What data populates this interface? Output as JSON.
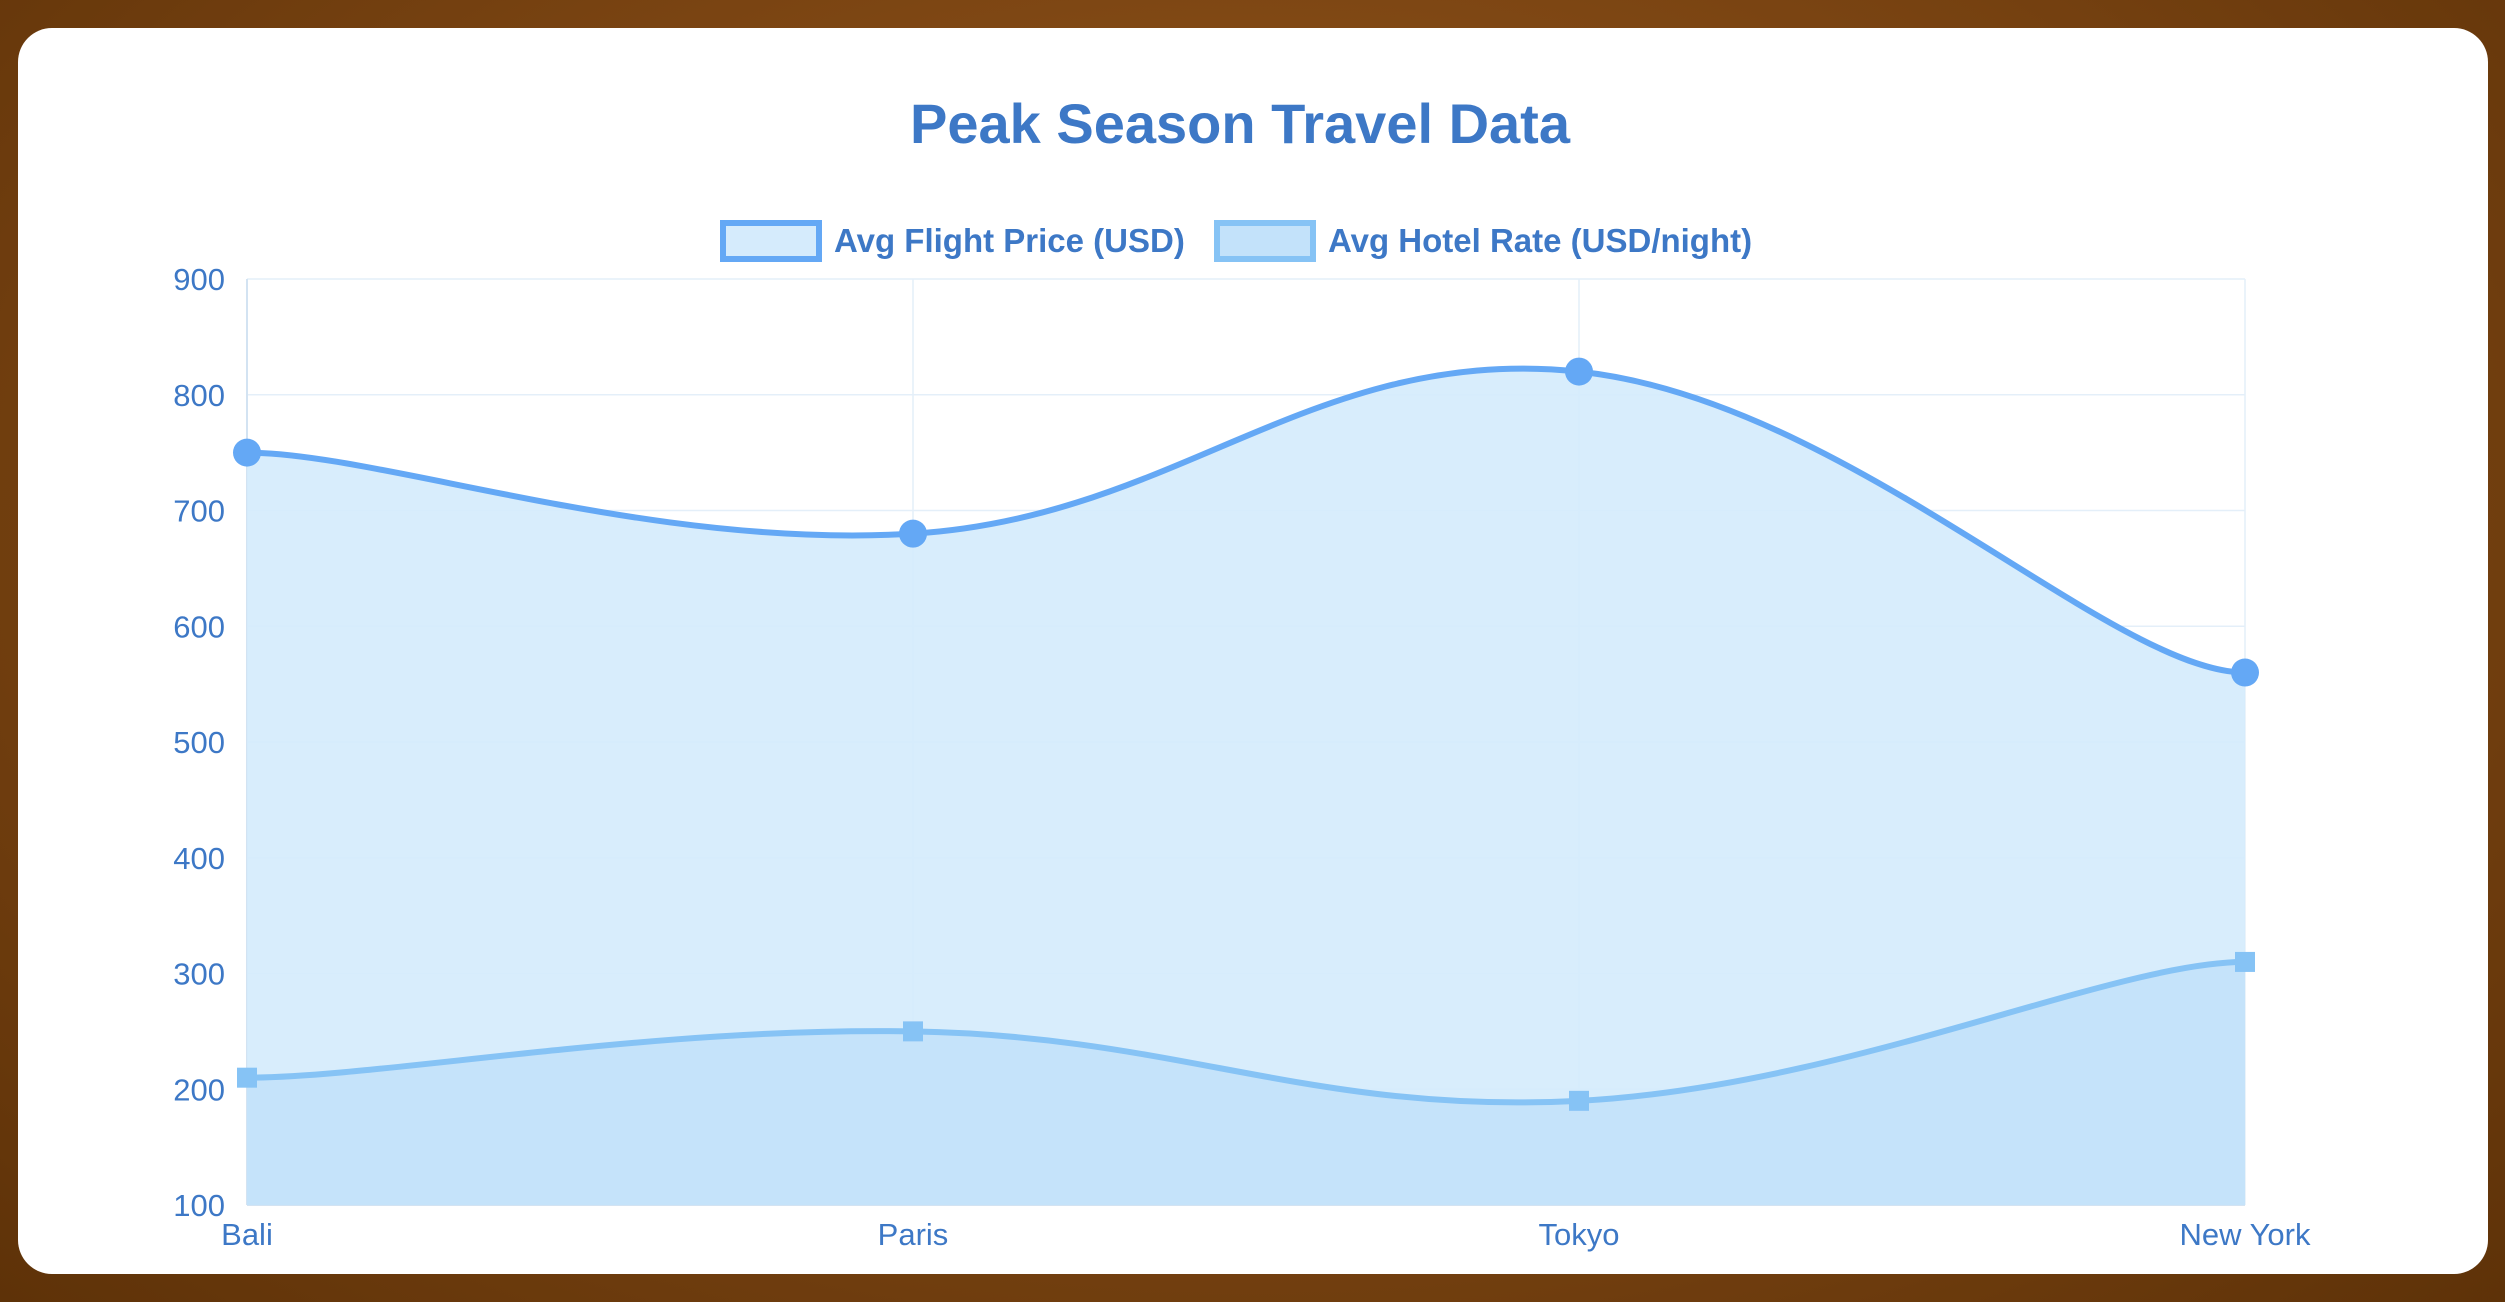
{
  "chart_data": {
    "type": "area",
    "title": "Peak Season Travel Data",
    "categories": [
      "Bali",
      "Paris",
      "Tokyo",
      "New York"
    ],
    "series": [
      {
        "name": "Avg Flight Price (USD)",
        "values": [
          750,
          680,
          820,
          560
        ],
        "color": "#64a8f5",
        "fill": "#d5ebfc",
        "marker": "circle"
      },
      {
        "name": "Avg Hotel Rate (USD/night)",
        "values": [
          210,
          250,
          190,
          310
        ],
        "color": "#86c3f5",
        "fill": "#c3e2fa",
        "marker": "square"
      }
    ],
    "ylim": [
      100,
      900
    ],
    "yticks": [
      100,
      200,
      300,
      400,
      500,
      600,
      700,
      800,
      900
    ],
    "xlabel": "",
    "ylabel": "",
    "grid": true,
    "legend_position": "top"
  }
}
